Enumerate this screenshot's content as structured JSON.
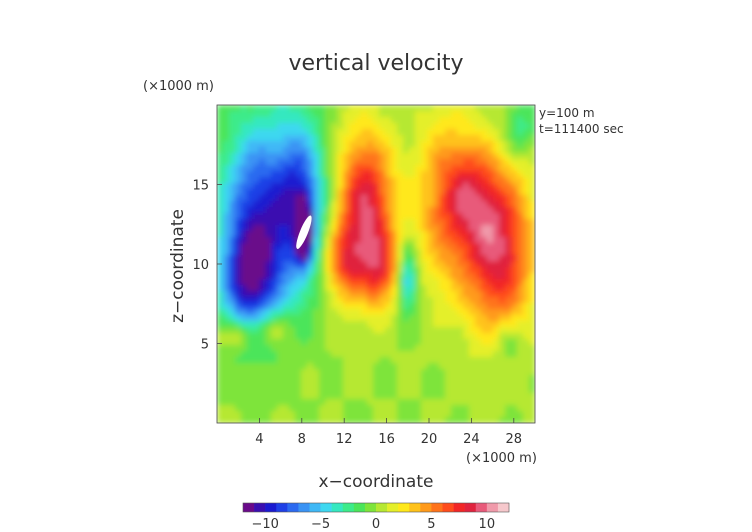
{
  "chart_data": {
    "type": "heatmap",
    "title": "vertical velocity",
    "xlabel": "x−coordinate",
    "ylabel": "z−coordinate",
    "x_unit": "(×1000 m)",
    "y_unit": "(×1000 m)",
    "xlim": [
      0,
      30
    ],
    "ylim": [
      0,
      20
    ],
    "x_ticks": [
      4,
      8,
      12,
      16,
      20,
      24,
      28
    ],
    "y_ticks": [
      5,
      10,
      15
    ],
    "annotations": [
      "y=100 m",
      "t=111400 sec"
    ],
    "colorbar": {
      "min": -12,
      "max": 12,
      "ticks": [
        -10,
        -5,
        0,
        5,
        10
      ],
      "tick_labels": [
        "−10",
        "−5",
        "0",
        "5",
        "10"
      ],
      "colors": [
        "#6a0a8a",
        "#3a0fb0",
        "#1a1ad0",
        "#1f40e6",
        "#2c6af0",
        "#3a93f4",
        "#3fb8f6",
        "#3ed8f0",
        "#35e8c0",
        "#3ceb8a",
        "#4be55a",
        "#7ee43a",
        "#b6e832",
        "#e4ef2a",
        "#ffe81a",
        "#ffc21a",
        "#ff9a1a",
        "#ff731a",
        "#ff4c1c",
        "#f22626",
        "#e0233e",
        "#e85a7a",
        "#f09aaa",
        "#f6c8cc"
      ]
    },
    "grid": false,
    "field_features": [
      {
        "kind": "downdraft",
        "x": 4,
        "z": 13,
        "sx": 2.6,
        "sz": 4.2,
        "w": -9
      },
      {
        "kind": "downdraft",
        "x": 8,
        "z": 14,
        "sx": 1.6,
        "sz": 3.6,
        "w": -7
      },
      {
        "kind": "downdraft",
        "x": 3,
        "z": 9,
        "sx": 1.8,
        "sz": 2.2,
        "w": -7
      },
      {
        "kind": "core",
        "x": 8.2,
        "z": 12,
        "sx": 0.5,
        "sz": 1.3,
        "w": -11
      },
      {
        "kind": "updraft",
        "x": 14,
        "z": 13.5,
        "sx": 1.9,
        "sz": 3.3,
        "w": 9
      },
      {
        "kind": "updraft",
        "x": 12,
        "z": 10,
        "sx": 1.4,
        "sz": 1.6,
        "w": 5
      },
      {
        "kind": "updraft",
        "x": 15.5,
        "z": 9.5,
        "sx": 1.1,
        "sz": 1.6,
        "w": 5
      },
      {
        "kind": "downdraft",
        "x": 18,
        "z": 9,
        "sx": 0.6,
        "sz": 1.4,
        "w": -6
      },
      {
        "kind": "updraft",
        "x": 21.5,
        "z": 14,
        "sx": 2.0,
        "sz": 3.8,
        "w": 5
      },
      {
        "kind": "updraft",
        "x": 26.5,
        "z": 11,
        "sx": 2.3,
        "sz": 3.6,
        "w": 9
      },
      {
        "kind": "updraft",
        "x": 24,
        "z": 14.5,
        "sx": 1.6,
        "sz": 2.2,
        "w": 4
      },
      {
        "kind": "downdraft",
        "x": 28.5,
        "z": 18.5,
        "sx": 1.1,
        "sz": 1.2,
        "w": -3
      },
      {
        "kind": "downdraft",
        "x": 27.5,
        "z": 5,
        "sx": 0.9,
        "sz": 0.8,
        "w": -2.5
      },
      {
        "kind": "updraft",
        "x": 5,
        "z": 6,
        "sx": 1.2,
        "sz": 0.7,
        "w": 3
      },
      {
        "kind": "updraft",
        "x": 2,
        "z": 5.5,
        "sx": 1.3,
        "sz": 0.6,
        "w": 3
      }
    ]
  }
}
